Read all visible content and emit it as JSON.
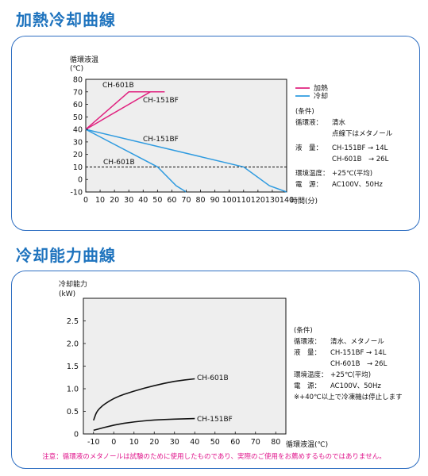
{
  "heating_cooling": {
    "title": "加熱冷却曲線",
    "y_label_1": "循環液温",
    "y_label_2": "(℃)",
    "x_label": "時間(分)",
    "legend": [
      {
        "label": "加熱",
        "color": "#e0227f"
      },
      {
        "label": "冷却",
        "color": "#2f9be0"
      }
    ],
    "curve_labels": {
      "h601": "CH-601B",
      "h151": "CH-151BF",
      "c151": "CH-151BF",
      "c601": "CH-601B"
    },
    "conditions": {
      "header": "(条件)",
      "rows": [
        {
          "k": "循環液：",
          "v": "清水"
        },
        {
          "k": "",
          "v": "点線下はメタノール"
        },
        {
          "k": "液　量：",
          "v": "CH-151BF → 14L"
        },
        {
          "k": "",
          "v": "CH-601B　→ 26L"
        },
        {
          "k": "環境温度：",
          "v": "+25℃(平均)"
        },
        {
          "k": "電　源：",
          "v": "AC100V、50Hz"
        }
      ]
    }
  },
  "cooling_capacity": {
    "title": "冷却能力曲線",
    "y_label_1": "冷却能力",
    "y_label_2": "(kW)",
    "x_label": "循環液温(℃)",
    "curve_labels": {
      "c601": "CH-601B",
      "c151": "CH-151BF"
    },
    "conditions": {
      "header": "(条件)",
      "rows": [
        {
          "k": "循環液：",
          "v": "清水、メタノール"
        },
        {
          "k": "液　量：",
          "v": "CH-151BF → 14L"
        },
        {
          "k": "",
          "v": "CH-601B　→ 26L"
        },
        {
          "k": "環境温度：",
          "v": "+25℃(平均)"
        },
        {
          "k": "電　源：",
          "v": "AC100V、50Hz"
        }
      ],
      "footnote": "※+40℃以上で冷凍機は停止します"
    }
  },
  "note": "注意：循環液のメタノールは試験のために使用したものであり、実際のご使用をお薦めするものではありません。",
  "chart_data": [
    {
      "type": "line",
      "title": "加熱冷却曲線",
      "xlabel": "時間(分)",
      "ylabel": "循環液温(℃)",
      "xlim": [
        0,
        140
      ],
      "ylim": [
        -10,
        80
      ],
      "x_ticks": [
        0,
        10,
        20,
        30,
        40,
        50,
        60,
        70,
        80,
        90,
        100,
        110,
        120,
        130,
        140
      ],
      "y_ticks": [
        -10,
        0,
        10,
        20,
        30,
        40,
        50,
        60,
        70,
        80
      ],
      "reference_line": {
        "y": 10,
        "style": "dashed"
      },
      "series": [
        {
          "name": "CH-601B",
          "group": "加熱",
          "points": [
            [
              0,
              40
            ],
            [
              30,
              70
            ],
            [
              50,
              70
            ]
          ]
        },
        {
          "name": "CH-151BF",
          "group": "加熱",
          "points": [
            [
              0,
              40
            ],
            [
              45,
              70
            ],
            [
              55,
              70
            ]
          ]
        },
        {
          "name": "CH-151BF",
          "group": "冷却",
          "points": [
            [
              0,
              40
            ],
            [
              110,
              10
            ],
            [
              128,
              -5
            ],
            [
              140,
              -10
            ]
          ]
        },
        {
          "name": "CH-601B",
          "group": "冷却",
          "points": [
            [
              0,
              40
            ],
            [
              50,
              10
            ],
            [
              63,
              -5
            ],
            [
              70,
              -10
            ]
          ]
        }
      ]
    },
    {
      "type": "line",
      "title": "冷却能力曲線",
      "xlabel": "循環液温(℃)",
      "ylabel": "冷却能力(kW)",
      "xlim": [
        -15,
        85
      ],
      "ylim": [
        0,
        3
      ],
      "x_ticks": [
        -10,
        0,
        10,
        20,
        30,
        40,
        50,
        60,
        70,
        80
      ],
      "y_ticks": [
        0,
        0.5,
        1.0,
        1.5,
        2.0,
        2.5
      ],
      "y_tick_labels": [
        "0",
        "0.5",
        "1.0",
        "1.5",
        "2.0",
        "2.5"
      ],
      "series": [
        {
          "name": "CH-601B",
          "points": [
            [
              -10,
              0.3
            ],
            [
              -8,
              0.55
            ],
            [
              0,
              0.8
            ],
            [
              10,
              0.95
            ],
            [
              20,
              1.07
            ],
            [
              30,
              1.17
            ],
            [
              40,
              1.22
            ]
          ]
        },
        {
          "name": "CH-151BF",
          "points": [
            [
              -10,
              0.08
            ],
            [
              0,
              0.2
            ],
            [
              10,
              0.27
            ],
            [
              20,
              0.31
            ],
            [
              30,
              0.33
            ],
            [
              40,
              0.34
            ]
          ]
        }
      ]
    }
  ]
}
